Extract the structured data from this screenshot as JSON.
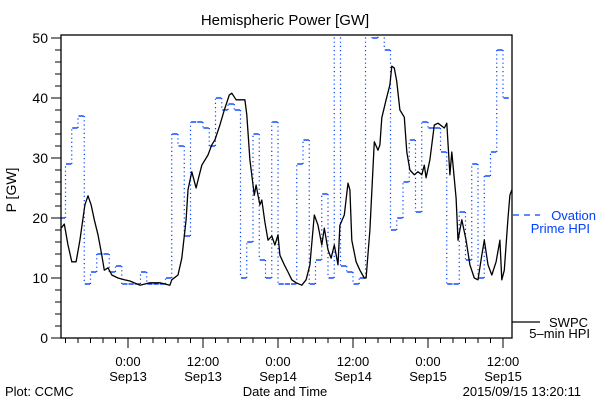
{
  "chart_data": {
    "type": "line",
    "title": "Hemispheric Power [GW]",
    "xlabel": "Date and Time",
    "ylabel": "P [GW]",
    "ylim": [
      0,
      50
    ],
    "x_units": "hours since 2015-09-13 00:00",
    "xlim": [
      -10.67,
      61.4
    ],
    "yticks": [
      0,
      10,
      20,
      30,
      40,
      50
    ],
    "xticks": [
      {
        "x": 0,
        "line1": "0:00",
        "line2": "Sep13"
      },
      {
        "x": 12,
        "line1": "12:00",
        "line2": "Sep13"
      },
      {
        "x": 24,
        "line1": "0:00",
        "line2": "Sep14"
      },
      {
        "x": 36,
        "line1": "12:00",
        "line2": "Sep14"
      },
      {
        "x": 48,
        "line1": "0:00",
        "line2": "Sep15"
      },
      {
        "x": 60,
        "line1": "12:00",
        "line2": "Sep15"
      }
    ],
    "grid": false,
    "legend_placement": "right-outside",
    "series": [
      {
        "name": "Ovation Prime HPI",
        "legend_line1": "Ovation",
        "legend_line2": "Prime HPI",
        "color": "#0040ff",
        "style": "step-dashed",
        "step_start_hour": -11,
        "step_hours": 1,
        "values": [
          20,
          29,
          35,
          37,
          9,
          11,
          14,
          14,
          11,
          12,
          9,
          9,
          9,
          11,
          9,
          9,
          9,
          10,
          34,
          32,
          17,
          36,
          36,
          35,
          32,
          40,
          38,
          39,
          38,
          10,
          16,
          34,
          13,
          10,
          36,
          9,
          9,
          9,
          29,
          33,
          9,
          13,
          24,
          10,
          55,
          12,
          11,
          9,
          10,
          55,
          50,
          55,
          48,
          18,
          20,
          26,
          33,
          21,
          36,
          35,
          35,
          31,
          9,
          9,
          21,
          13,
          29,
          10,
          27,
          31,
          48,
          40
        ]
      },
      {
        "name": "SWPC 5-min HPI",
        "legend_line1": "SWPC",
        "legend_line2": "5–min HPI",
        "color": "#000000",
        "style": "solid",
        "x": [
          -10.7,
          -10.2,
          -9.6,
          -9.0,
          -8.3,
          -7.7,
          -6.9,
          -6.4,
          -5.9,
          -5.4,
          -4.8,
          -4.2,
          -3.8,
          -3.2,
          -2.6,
          -1.6,
          -0.6,
          0.3,
          1.9,
          3.5,
          5.1,
          6.7,
          7.0,
          8.0,
          8.6,
          9.3,
          9.6,
          10.2,
          10.9,
          11.2,
          11.8,
          12.8,
          13.4,
          13.9,
          14.7,
          15.4,
          16.2,
          16.6,
          17.3,
          17.9,
          18.7,
          19.0,
          19.5,
          20.2,
          20.5,
          20.8,
          21.1,
          21.4,
          21.9,
          22.4,
          23.0,
          23.5,
          24.0,
          24.3,
          25.0,
          25.6,
          26.2,
          26.9,
          27.8,
          28.5,
          29.1,
          29.8,
          30.4,
          31.0,
          31.4,
          32.0,
          32.5,
          33.0,
          33.6,
          33.9,
          34.6,
          35.2,
          35.5,
          35.8,
          36.5,
          37.1,
          37.8,
          38.1,
          38.7,
          39.4,
          40.0,
          40.3,
          40.6,
          41.3,
          41.9,
          42.2,
          42.6,
          43.0,
          43.5,
          44.2,
          44.6,
          45.1,
          45.8,
          46.4,
          47.0,
          47.4,
          47.7,
          48.3,
          49.0,
          49.6,
          50.6,
          51.0,
          51.5,
          51.8,
          52.5,
          52.8,
          53.4,
          54.1,
          54.7,
          55.4,
          56.0,
          56.6,
          57.0,
          57.6,
          58.2,
          58.9,
          59.5,
          59.8,
          60.2,
          60.8,
          61.1,
          61.4
        ],
        "values": [
          18.3,
          19,
          15.5,
          12.7,
          12.7,
          16.3,
          22.2,
          23.7,
          22.2,
          19.7,
          17.2,
          13.8,
          11.3,
          11.7,
          10.5,
          10,
          9.7,
          9.5,
          8.8,
          9.2,
          9.2,
          8.8,
          9.7,
          10.5,
          13.3,
          19.7,
          24.7,
          27.7,
          25,
          26.3,
          28.8,
          30.5,
          32.2,
          33,
          35.5,
          38,
          40.5,
          40.8,
          39.7,
          39.7,
          39.7,
          37.2,
          29.7,
          23.8,
          25.5,
          23.8,
          22.2,
          23,
          19.3,
          16.3,
          17,
          15.5,
          17.2,
          13.8,
          12.2,
          11,
          9.7,
          9.2,
          8.8,
          9.7,
          12.2,
          20.5,
          18.8,
          15.5,
          18.3,
          14.7,
          13.3,
          15.5,
          12.2,
          18.8,
          20.5,
          25.8,
          24.7,
          16.3,
          12.7,
          11.3,
          10,
          10,
          18,
          32.7,
          31.3,
          32.2,
          36.7,
          39.7,
          42.2,
          45.3,
          45,
          42.7,
          38,
          36.8,
          31,
          28,
          27.2,
          27.7,
          27.2,
          28.8,
          26.7,
          29.7,
          35.5,
          35.8,
          35,
          35.8,
          27.2,
          31,
          23.3,
          16.3,
          19.7,
          16.3,
          12.2,
          10,
          9.7,
          13.8,
          16.3,
          12.2,
          10.5,
          12.7,
          16.3,
          9.7,
          11.3,
          20,
          23.8,
          24.7
        ]
      }
    ]
  },
  "footer": {
    "credit": "Plot: CCMC",
    "timestamp": "2015/09/15 13:20:11"
  }
}
